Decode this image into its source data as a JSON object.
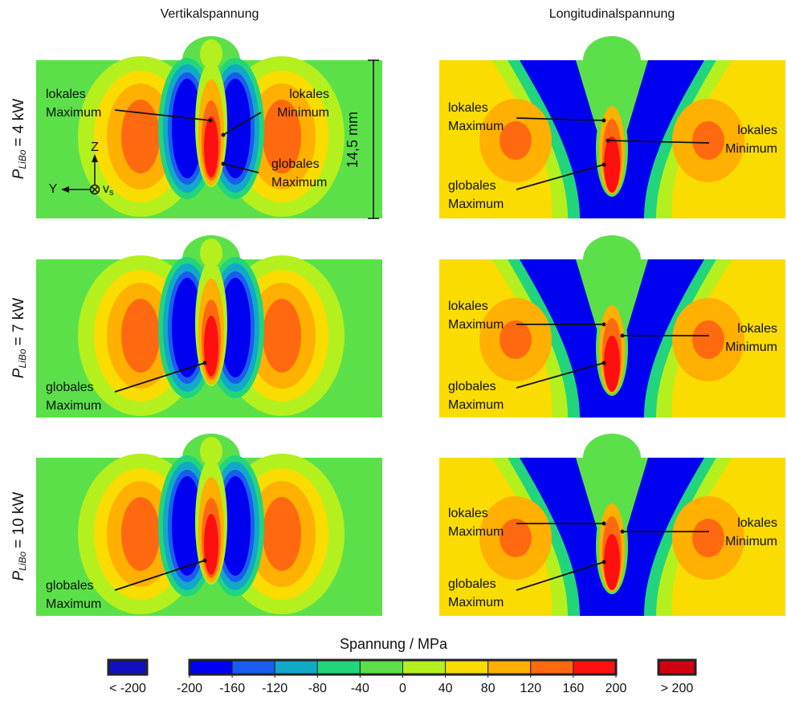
{
  "columns": [
    "Vertikalspannung",
    "Longitudinalspannung"
  ],
  "rows": [
    {
      "symbol": "P",
      "subscript": "LiBo",
      "value": "= 4 kW"
    },
    {
      "symbol": "P",
      "subscript": "LiBo",
      "value": "= 7 kW"
    },
    {
      "symbol": "P",
      "subscript": "LiBo",
      "value": "= 10 kW"
    }
  ],
  "panels": [
    [
      {
        "annotations": [
          [
            "lokales",
            "Maximum"
          ],
          [
            "lokales",
            "Minimum"
          ],
          [
            "globales",
            "Maximum"
          ]
        ]
      },
      {
        "annotations": [
          [
            "lokales",
            "Maximum"
          ],
          [
            "lokales",
            "Minimum"
          ],
          [
            "globales",
            "Maximum"
          ]
        ]
      }
    ],
    [
      {
        "annotations": [
          [
            "globales",
            "Maximum"
          ]
        ]
      },
      {
        "annotations": [
          [
            "lokales",
            "Maximum"
          ],
          [
            "lokales",
            "Minimum"
          ],
          [
            "globales",
            "Maximum"
          ]
        ]
      }
    ],
    [
      {
        "annotations": [
          [
            "globales",
            "Maximum"
          ]
        ]
      },
      {
        "annotations": [
          [
            "lokales",
            "Maximum"
          ],
          [
            "lokales",
            "Minimum"
          ],
          [
            "globales",
            "Maximum"
          ]
        ]
      }
    ]
  ],
  "scale_bar": "14,5 mm",
  "coordinate_axes": {
    "z": "Z",
    "y": "Y",
    "v": "v",
    "v_subscript": "s"
  },
  "colorbar": {
    "title": "Spannung / MPa",
    "ticks": [
      -200,
      -160,
      -120,
      -80,
      -40,
      0,
      40,
      80,
      120,
      160,
      200
    ],
    "colors": [
      "#0000f0",
      "#1a5cf0",
      "#12a8c8",
      "#22d57c",
      "#5ce04a",
      "#b4f01e",
      "#fadc00",
      "#ffb000",
      "#ff6a10",
      "#ff1010"
    ],
    "under": {
      "label": "< -200",
      "color": "#1010c0"
    },
    "over": {
      "label": "> 200",
      "color": "#d00010"
    }
  }
}
